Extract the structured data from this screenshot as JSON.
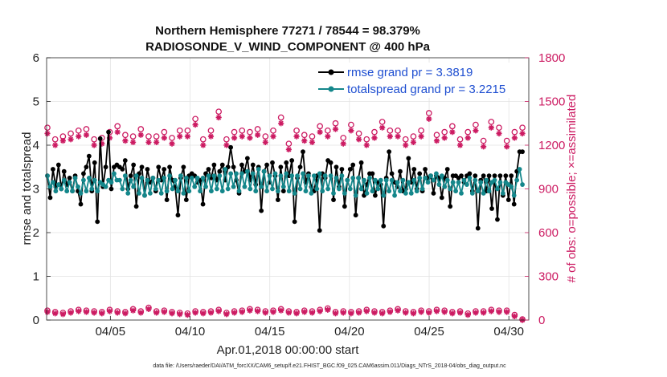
{
  "chart_data": {
    "type": "line",
    "title_line1": "Northern Hemisphere 77271 / 78544 = 98.379%",
    "title_line2": "RADIOSONDE_V_WIND_COMPONENT @ 400 hPa",
    "ylabel_left": "rmse and totalspread",
    "ylabel_right": "# of obs: o=possible; ×=assimilated",
    "xlabel": "Apr.01,2018 00:00:00 start",
    "footnote": "data file: /Users/raeder/DAI/ATM_forcXX/CAM6_setup/f.e21.FHIST_BGC.f09_025.CAM6assim.011/Diags_NTrS_2018-04/obs_diag_output.nc",
    "x_range": [
      1,
      31.25
    ],
    "ylim_left": [
      0,
      6
    ],
    "ylim_right": [
      0,
      1800
    ],
    "xticks": [
      {
        "x": 5,
        "label": "04/05"
      },
      {
        "x": 10,
        "label": "04/10"
      },
      {
        "x": 15,
        "label": "04/15"
      },
      {
        "x": 20,
        "label": "04/20"
      },
      {
        "x": 25,
        "label": "04/25"
      },
      {
        "x": 30,
        "label": "04/30"
      }
    ],
    "yticks_left": [
      "0",
      "1",
      "2",
      "3",
      "4",
      "5",
      "6"
    ],
    "yticks_right": [
      "0",
      "300",
      "600",
      "900",
      "1200",
      "1500",
      "1800"
    ],
    "colors": {
      "rmse": "#000000",
      "spread": "#14878b",
      "obs": "#cc1b62",
      "legend_text": "#1f4fd1"
    },
    "series": [
      {
        "name": "rmse grand pr = 3.3819",
        "key": "rmse",
        "values": [
          3.3,
          2.8,
          3.45,
          3.05,
          3.55,
          3.0,
          3.4,
          3.1,
          3.25,
          2.95,
          3.3,
          2.95,
          2.65,
          3.35,
          3.5,
          3.75,
          2.95,
          3.6,
          2.25,
          4.15,
          3.05,
          3.5,
          4.3,
          3.0,
          3.5,
          3.55,
          3.5,
          3.45,
          3.65,
          3.0,
          3.3,
          3.55,
          2.6,
          3.35,
          3.5,
          2.85,
          3.45,
          3.15,
          3.25,
          2.95,
          3.5,
          3.2,
          3.45,
          2.75,
          3.5,
          3.2,
          3.05,
          2.4,
          3.25,
          3.5,
          2.75,
          3.3,
          3.35,
          3.3,
          3.15,
          3.2,
          2.65,
          3.35,
          3.45,
          3.25,
          3.55,
          3.2,
          3.4,
          3.55,
          3.2,
          3.5,
          3.95,
          3.5,
          3.2,
          2.9,
          3.55,
          3.4,
          3.7,
          3.2,
          3.55,
          3.1,
          3.5,
          2.5,
          3.4,
          3.55,
          3.15,
          3.6,
          3.3,
          2.75,
          3.5,
          2.95,
          3.6,
          3.3,
          3.65,
          2.25,
          3.25,
          3.5,
          3.85,
          3.15,
          3.35,
          3.05,
          2.95,
          3.3,
          2.05,
          3.35,
          3.25,
          3.65,
          3.6,
          2.75,
          3.5,
          3.05,
          3.45,
          2.6,
          3.2,
          3.45,
          3.55,
          2.4,
          3.25,
          3.6,
          2.85,
          3.1,
          3.35,
          3.35,
          2.85,
          3.15,
          3.1,
          2.15,
          3.25,
          3.85,
          3.35,
          3.15,
          3.05,
          3.4,
          2.95,
          3.0,
          3.7,
          3.15,
          3.45,
          3.0,
          3.35,
          2.95,
          3.45,
          3.25,
          3.3,
          2.9,
          3.3,
          3.25,
          2.8,
          3.25,
          3.45,
          2.6,
          3.3,
          3.3,
          3.25,
          3.3,
          3.15,
          3.3,
          3.35,
          2.95,
          3.3,
          2.1,
          3.2,
          3.3,
          2.95,
          3.3,
          2.55,
          3.3,
          2.3,
          3.3,
          2.85,
          3.3,
          2.75,
          3.3,
          2.65,
          3.4,
          3.85,
          3.85
        ]
      },
      {
        "name": "totalspread grand pr = 3.2215",
        "key": "spread",
        "values": [
          3.3,
          3.05,
          3.15,
          2.95,
          3.1,
          3.0,
          3.2,
          2.95,
          3.15,
          2.95,
          3.25,
          3.05,
          2.9,
          3.2,
          2.95,
          3.25,
          3.0,
          3.2,
          2.95,
          3.15,
          3.1,
          3.05,
          3.2,
          3.15,
          3.35,
          3.2,
          3.2,
          3.0,
          3.3,
          2.9,
          3.2,
          3.05,
          3.3,
          2.9,
          3.25,
          2.85,
          3.2,
          2.9,
          3.25,
          3.0,
          3.2,
          2.9,
          3.25,
          2.95,
          3.3,
          3.0,
          3.2,
          2.95,
          3.3,
          2.9,
          3.25,
          2.95,
          3.25,
          3.05,
          3.25,
          2.95,
          3.25,
          3.05,
          3.3,
          2.95,
          3.3,
          3.0,
          3.3,
          2.95,
          3.45,
          3.0,
          3.35,
          3.05,
          3.35,
          2.95,
          3.35,
          3.05,
          3.4,
          3.0,
          3.35,
          2.95,
          3.45,
          3.05,
          3.4,
          2.95,
          3.3,
          3.0,
          3.35,
          2.95,
          3.3,
          3.05,
          3.35,
          2.95,
          3.3,
          2.9,
          3.3,
          3.0,
          3.35,
          2.95,
          3.3,
          2.9,
          3.3,
          3.0,
          3.35,
          2.95,
          3.3,
          3.0,
          3.3,
          2.9,
          3.25,
          3.0,
          3.3,
          2.9,
          3.2,
          3.0,
          3.25,
          2.85,
          3.25,
          3.0,
          3.2,
          2.9,
          3.25,
          2.95,
          3.2,
          3.0,
          3.2,
          2.85,
          3.2,
          2.95,
          3.2,
          2.85,
          3.15,
          2.95,
          3.2,
          2.9,
          3.15,
          2.9,
          3.2,
          2.95,
          3.25,
          3.0,
          3.25,
          3.15,
          3.3,
          3.2,
          3.35,
          3.1,
          3.3,
          3.05,
          3.2,
          3.0,
          3.15,
          2.95,
          3.15,
          2.9,
          3.2,
          3.1,
          3.25,
          2.9,
          3.2,
          2.95,
          3.15,
          2.9,
          3.2,
          2.95,
          3.15,
          3.2,
          3.0,
          3.15,
          2.9,
          3.15,
          3.1,
          3.05,
          2.85,
          3.2,
          3.45,
          3.1
        ]
      },
      {
        "name": "possible",
        "key": "possible",
        "values": [
          1320,
          1240,
          1260,
          1280,
          1300,
          1310,
          1240,
          1250,
          1290,
          1330,
          1270,
          1260,
          1310,
          1260,
          1260,
          1290,
          1250,
          1300,
          1300,
          1380,
          1240,
          1300,
          1430,
          1240,
          1290,
          1300,
          1290,
          1310,
          1260,
          1300,
          1390,
          1210,
          1300,
          1270,
          1260,
          1330,
          1300,
          1350,
          1250,
          1340,
          1280,
          1240,
          1290,
          1360,
          1300,
          1300,
          1240,
          1260,
          1300,
          1420,
          1270,
          1290,
          1330,
          1240,
          1290,
          1340,
          1230,
          1360,
          1320,
          1230,
          1290,
          1320
        ]
      },
      {
        "name": "assimilated",
        "key": "assimilated",
        "values": [
          1280,
          1200,
          1230,
          1240,
          1260,
          1270,
          1200,
          1210,
          1250,
          1290,
          1230,
          1220,
          1270,
          1220,
          1220,
          1250,
          1210,
          1260,
          1260,
          1340,
          1200,
          1260,
          1390,
          1200,
          1250,
          1260,
          1250,
          1270,
          1220,
          1260,
          1350,
          1170,
          1260,
          1230,
          1220,
          1290,
          1260,
          1310,
          1210,
          1300,
          1240,
          1200,
          1250,
          1320,
          1260,
          1260,
          1200,
          1220,
          1260,
          1380,
          1230,
          1250,
          1290,
          1200,
          1250,
          1300,
          1190,
          1320,
          1280,
          1190,
          1250,
          1280
        ]
      },
      {
        "name": "possible_low",
        "key": "possible_low",
        "values": [
          65,
          55,
          50,
          60,
          70,
          65,
          60,
          55,
          70,
          60,
          55,
          75,
          60,
          85,
          60,
          65,
          55,
          50,
          45,
          60,
          55,
          60,
          70,
          50,
          60,
          65,
          75,
          70,
          60,
          65,
          75,
          60,
          55,
          65,
          60,
          70,
          80,
          55,
          60,
          55,
          60,
          70,
          60,
          55,
          65,
          75,
          60,
          55,
          65,
          60,
          70,
          65,
          55,
          60,
          45,
          60,
          60,
          70,
          65,
          65,
          35,
          5
        ]
      },
      {
        "name": "assimilated_low",
        "key": "assimilated_low",
        "values": [
          55,
          45,
          40,
          50,
          60,
          55,
          50,
          45,
          60,
          50,
          45,
          65,
          50,
          75,
          50,
          55,
          45,
          40,
          35,
          50,
          45,
          50,
          60,
          40,
          50,
          55,
          65,
          60,
          50,
          55,
          65,
          50,
          45,
          55,
          50,
          60,
          70,
          45,
          50,
          45,
          50,
          60,
          50,
          45,
          55,
          65,
          50,
          45,
          55,
          50,
          60,
          55,
          45,
          50,
          35,
          50,
          50,
          60,
          55,
          55,
          25,
          0
        ]
      }
    ]
  }
}
